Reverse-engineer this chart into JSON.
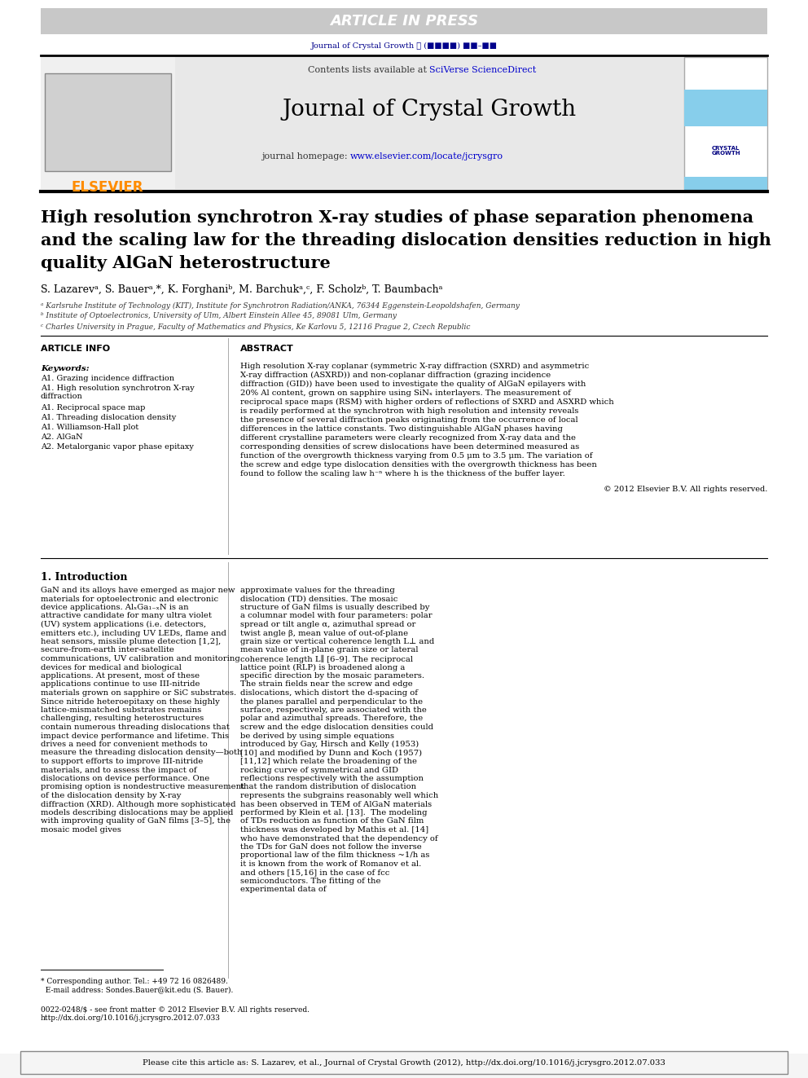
{
  "page_bg": "#ffffff",
  "header_bar_color": "#c8c8c8",
  "header_text": "ARTICLE IN PRESS",
  "header_text_color": "#ffffff",
  "journal_ref_color": "#00008B",
  "journal_ref": "Journal of Crystal Growth ℓ (■■■■) ■■–■■",
  "top_border_color": "#000000",
  "journal_header_bg": "#e8e8e8",
  "contents_text": "Contents lists available at ",
  "sciverse_text": "SciVerse ScienceDirect",
  "sciverse_color": "#0000CC",
  "journal_title": "Journal of Crystal Growth",
  "homepage_text": "journal homepage: ",
  "homepage_url": "www.elsevier.com/locate/jcrysgro",
  "homepage_url_color": "#0000CC",
  "elsevier_color": "#FF8C00",
  "bottom_border_color": "#000000",
  "article_title_line1": "High resolution synchrotron X-ray studies of phase separation phenomena",
  "article_title_line2": "and the scaling law for the threading dislocation densities reduction in high",
  "article_title_line3": "quality AlGaN heterostructure",
  "authors": "S. Lazarevᵃ, S. Bauerᵃ,*, K. Forghaniᵇ, M. Barchukᵃ,ᶜ, F. Scholzᵇ, T. Baumbachᵃ",
  "affil_a": "ᵃ Karlsruhe Institute of Technology (KIT), Institute for Synchrotron Radiation/ANKA, 76344 Eggenstein-Leopoldshafen, Germany",
  "affil_b": "ᵇ Institute of Optoelectronics, University of Ulm, Albert Einstein Allee 45, 89081 Ulm, Germany",
  "affil_c": "ᶜ Charles University in Prague, Faculty of Mathematics and Physics, Ke Karlovu 5, 12116 Prague 2, Czech Republic",
  "section_article_info": "ARTICLE INFO",
  "section_abstract": "ABSTRACT",
  "keywords_header": "Keywords:",
  "keywords": [
    "A1. Grazing incidence diffraction",
    "A1. High resolution synchrotron X-ray\ndiffraction",
    "A1. Reciprocal space map",
    "A1. Threading dislocation density",
    "A1. Williamson-Hall plot",
    "A2. AlGaN",
    "A2. Metalorganic vapor phase epitaxy"
  ],
  "abstract_text": "High resolution X-ray coplanar (symmetric X-ray diffraction (SXRD) and asymmetric X-ray diffraction (ASXRD)) and non-coplanar diffraction (grazing incidence diffraction (GID)) have been used to investigate the quality of AlGaN epilayers with 20% Al content, grown on sapphire using SiNₓ interlayers. The measurement of reciprocal space maps (RSM) with higher orders of reflections of SXRD and ASXRD which is readily performed at the synchrotron with high resolution and intensity reveals the presence of several diffraction peaks originating from the occurrence of local differences in the lattice constants. Two distinguishable AlGaN phases having different crystalline parameters were clearly recognized from X-ray data and the corresponding densities of screw dislocations have been determined measured as function of the overgrowth thickness varying from 0.5 μm to 3.5 μm. The variation of the screw and edge type dislocation densities with the overgrowth thickness has been found to follow the scaling law h⁻ⁿ where h is the thickness of the buffer layer.",
  "copyright_text": "© 2012 Elsevier B.V. All rights reserved.",
  "intro_header": "1. Introduction",
  "intro_text_left": "GaN and its alloys have emerged as major new materials for optoelectronic and electronic device applications. AlₓGa₁₋ₓN is an attractive candidate for many ultra violet (UV) system applications (i.e. detectors, emitters etc.), including UV LEDs, flame and heat sensors, missile plume detection [1,2], secure-from-earth inter-satellite communications, UV calibration and monitoring devices for medical and biological applications. At present, most of these applications continue to use III-nitride materials grown on sapphire or SiC substrates. Since nitride heteroepitaxy on these highly lattice-mismatched substrates remains challenging, resulting heterostructures contain numerous threading dislocations that impact device performance and lifetime. This drives a need for convenient methods to measure the threading dislocation density—both to support efforts to improve III-nitride materials, and to assess the impact of dislocations on device performance. One promising option is nondestructive measurement of the dislocation density by X-ray diffraction (XRD). Although more sophisticated models describing dislocations may be applied with improving quality of GaN films [3–5], the mosaic model gives",
  "intro_text_right": "approximate values for the threading dislocation (TD) densities. The mosaic structure of GaN films is usually described by a columnar model with four parameters: polar spread or tilt angle α, azimuthal spread or twist angle β, mean value of out-of-plane grain size or vertical coherence length L⊥ and mean value of in-plane grain size or lateral coherence length L∥ [6–9]. The reciprocal lattice point (RLP) is broadened along a specific direction by the mosaic parameters. The strain fields near the screw and edge dislocations, which distort the d-spacing of the planes parallel and perpendicular to the surface, respectively, are associated with the polar and azimuthal spreads. Therefore, the screw and the edge dislocation densities could be derived by using simple equations introduced by Gay, Hirsch and Kelly (1953) [10] and modified by Dunn and Koch (1957) [11,12] which relate the broadening of the rocking curve of symmetrical and GID reflections respectively with the assumption that the random distribution of dislocation represents the subgrains reasonably well which has been observed in TEM of AlGaN materials performed by Klein et al. [13].\n\nThe modeling of TDs reduction as function of the GaN film thickness was developed by Mathis et al. [14] who have demonstrated that the dependency of the TDs for GaN does not follow the inverse proportional law of the film thickness ~1/h as it is known from the work of Romanov et al. and others [15,16] in the case of fcc semiconductors. The fitting of the experimental data of",
  "footnote_text": "* Corresponding author. Tel.: +49 72 16 0826489.\n  E-mail address: Sondes.Bauer@kit.edu (S. Bauer).",
  "issn_text": "0022-0248/$ - see front matter © 2012 Elsevier B.V. All rights reserved.\nhttp://dx.doi.org/10.1016/j.jcrysgro.2012.07.033",
  "cite_text": "Please cite this article as: S. Lazarev, et al., Journal of Crystal Growth (2012), http://dx.doi.org/10.1016/j.jcrysgro.2012.07.033"
}
